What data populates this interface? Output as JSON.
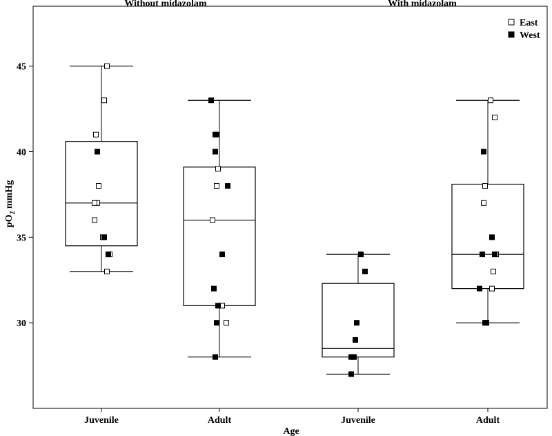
{
  "chart_data": {
    "type": "box",
    "panel_titles": [
      "Without midazolam",
      "With midazolam"
    ],
    "xlabel": "Age",
    "ylabel_main": "pO",
    "ylabel_sub": "2",
    "ylabel_unit": " mmHg",
    "ylim": [
      25.0,
      48.5
    ],
    "yticks": [
      "30",
      "35",
      "40",
      "45"
    ],
    "legend": [
      {
        "name": "East",
        "marker": "open-square"
      },
      {
        "name": "West",
        "marker": "filled-square"
      }
    ],
    "legend_position": "top-right",
    "categories": [
      "Juvenile",
      "Adult",
      "Juvenile",
      "Adult"
    ],
    "groups": [
      {
        "panel": "Without midazolam",
        "category": "Juvenile",
        "whisker_low": 33,
        "q1": 34.5,
        "median": 37,
        "q3": 40.6,
        "whisker_high": 45,
        "east": [
          45,
          43,
          41,
          38,
          37,
          37,
          36,
          35,
          34,
          33
        ],
        "west": [
          40,
          35,
          34
        ]
      },
      {
        "panel": "Without midazolam",
        "category": "Adult",
        "whisker_low": 28,
        "q1": 31,
        "median": 36,
        "q3": 39.1,
        "whisker_high": 43,
        "east": [
          39,
          38,
          36,
          31,
          30
        ],
        "west": [
          43,
          41,
          41,
          40,
          38,
          34,
          32,
          31,
          30,
          28
        ]
      },
      {
        "panel": "With midazolam",
        "category": "Juvenile",
        "whisker_low": 27,
        "q1": 28,
        "median": 28.5,
        "q3": 32.3,
        "whisker_high": 34,
        "east": [],
        "west": [
          34,
          33,
          30,
          29,
          28,
          28,
          27
        ]
      },
      {
        "panel": "With midazolam",
        "category": "Adult",
        "whisker_low": 30,
        "q1": 32,
        "median": 34,
        "q3": 38.1,
        "whisker_high": 43,
        "east": [
          43,
          42,
          38,
          37,
          34,
          33,
          32
        ],
        "west": [
          40,
          35,
          34,
          34,
          32,
          30,
          30
        ]
      }
    ],
    "colors": {
      "stroke": "#000000",
      "background": "#ffffff"
    }
  }
}
